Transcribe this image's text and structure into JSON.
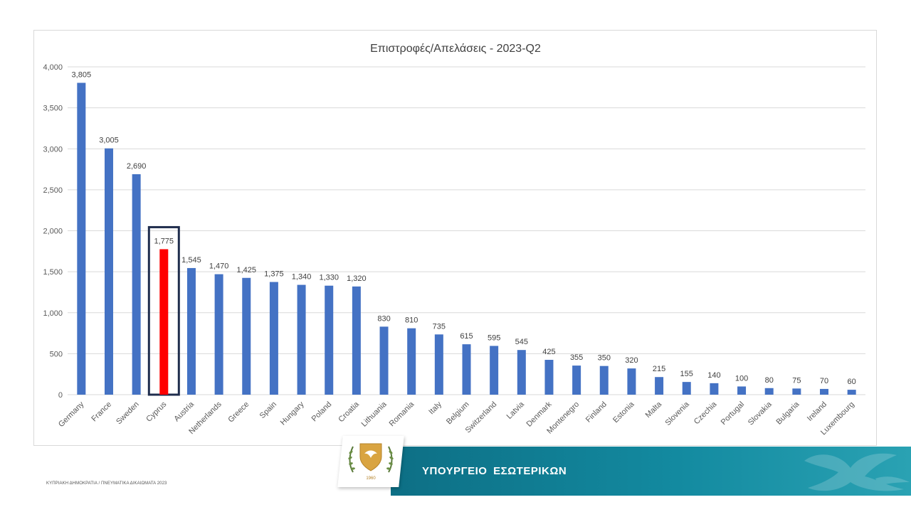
{
  "chart_data": {
    "type": "bar",
    "title": "Επιστροφές/Απελάσεις - 2023-Q2",
    "xlabel": "",
    "ylabel": "",
    "ylim": [
      0,
      4000
    ],
    "yticks": [
      0,
      500,
      1000,
      1500,
      2000,
      2500,
      3000,
      3500,
      4000
    ],
    "ytick_labels": [
      "0",
      "500",
      "1,000",
      "1,500",
      "2,000",
      "2,500",
      "3,000",
      "3,500",
      "4,000"
    ],
    "grid": true,
    "legend": "none",
    "categories": [
      "Germany",
      "France",
      "Sweden",
      "Cyprus",
      "Austria",
      "Netherlands",
      "Greece",
      "Spain",
      "Hungary",
      "Poland",
      "Croatia",
      "Lithuania",
      "Romania",
      "Italy",
      "Belgium",
      "Switzerland",
      "Latvia",
      "Denmark",
      "Montenegro",
      "Finland",
      "Estonia",
      "Malta",
      "Slovenia",
      "Czechia",
      "Portugal",
      "Slovakia",
      "Bulgaria",
      "Ireland",
      "Luxembourg"
    ],
    "values": [
      3805,
      3005,
      2690,
      1775,
      1545,
      1470,
      1425,
      1375,
      1340,
      1330,
      1320,
      830,
      810,
      735,
      615,
      595,
      545,
      425,
      355,
      350,
      320,
      215,
      155,
      140,
      100,
      80,
      75,
      70,
      60
    ],
    "value_labels": [
      "3,805",
      "3,005",
      "2,690",
      "1,775",
      "1,545",
      "1,470",
      "1,425",
      "1,375",
      "1,340",
      "1,330",
      "1,320",
      "830",
      "810",
      "735",
      "615",
      "595",
      "545",
      "425",
      "355",
      "350",
      "320",
      "215",
      "155",
      "140",
      "100",
      "80",
      "75",
      "70",
      "60"
    ],
    "highlight_category": "Cyprus",
    "colors": {
      "bar": "#4472c4",
      "highlight": "#ff0000",
      "highlight_box": "#1f2d4d",
      "grid": "#d9d9d9"
    }
  },
  "footer": {
    "text": "ΚΥΠΡΙΑΚΗ ΔΗΜΟΚΡΑΤΙΑ / ΠΝΕΥΜΑΤΙΚΑ ΔΙΚΑΙΩΜΑΤΑ 2023"
  },
  "banner": {
    "title": "ΥΠΟΥΡΓΕΙΟ ΕΣΩΤΕΡΙΚΩΝ",
    "color": "#0d6f85"
  },
  "emblem": {
    "icon": "cyprus-coat-of-arms-icon"
  }
}
